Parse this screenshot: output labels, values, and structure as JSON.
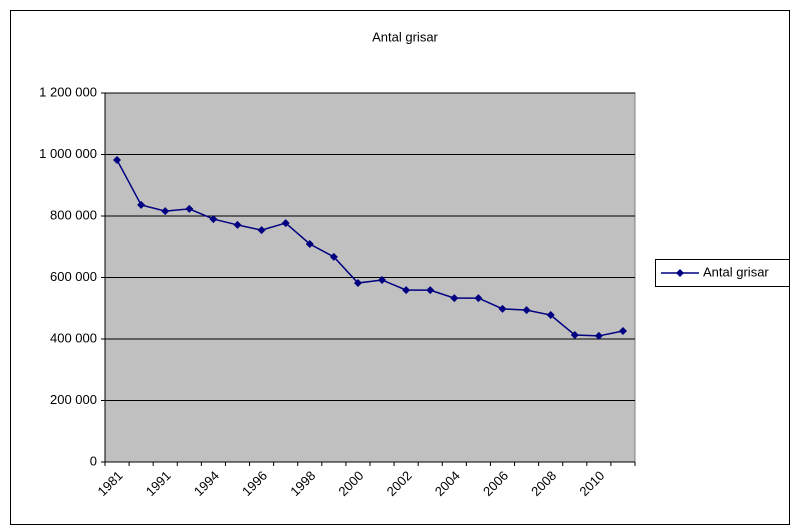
{
  "chart_data": {
    "type": "line",
    "title": "Antal grisar",
    "categories": [
      "1981",
      null,
      "1991",
      null,
      "1994",
      null,
      "1996",
      null,
      "1998",
      null,
      "2000",
      null,
      "2002",
      null,
      "2004",
      null,
      "2006",
      null,
      "2008",
      null,
      "2010",
      null
    ],
    "series": [
      {
        "name": "Antal grisar",
        "color": "#000080",
        "values": [
          982000,
          836000,
          816000,
          823000,
          790000,
          771000,
          754000,
          777000,
          709000,
          667000,
          582000,
          592000,
          559000,
          559000,
          533000,
          533000,
          498000,
          494000,
          478000,
          413000,
          410000,
          426000
        ]
      }
    ],
    "ylim": [
      0,
      1200000
    ],
    "yticks": [
      0,
      {
        "value": 200000,
        "label": "200 000"
      },
      {
        "value": 400000,
        "label": "400 000"
      },
      {
        "value": 600000,
        "label": "600 000"
      },
      {
        "value": 800000,
        "label": "800 000"
      },
      {
        "value": 1000000,
        "label": "1 000 000"
      },
      {
        "value": 1200000,
        "label": "1 200 000"
      }
    ],
    "grid": true,
    "legend": "right",
    "plot_background": "#c0c0c0"
  }
}
